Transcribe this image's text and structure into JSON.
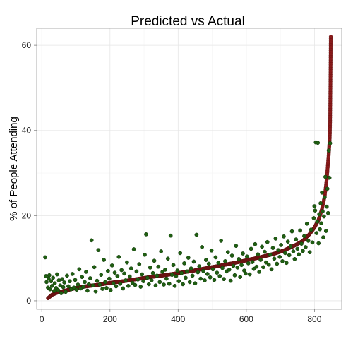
{
  "chart_data": {
    "type": "scatter",
    "title": "Predicted vs Actual",
    "xlabel": "",
    "ylabel": "% of People Attending",
    "xlim": [
      -15,
      880
    ],
    "ylim": [
      -2,
      64
    ],
    "x_ticks": [
      0,
      200,
      400,
      600,
      800
    ],
    "y_ticks": [
      0,
      20,
      40,
      60
    ],
    "grid": true,
    "legend": "none",
    "colors": {
      "actual": "#1f5e12",
      "predicted": "#8b1a1a"
    },
    "series": [
      {
        "role": "actual",
        "points": [
          [
            10,
            10.2
          ],
          [
            12,
            5.8
          ],
          [
            14,
            4.4
          ],
          [
            18,
            3.1
          ],
          [
            20,
            5.2
          ],
          [
            22,
            6.0
          ],
          [
            24,
            2.7
          ],
          [
            27,
            4.6
          ],
          [
            30,
            3.5
          ],
          [
            33,
            5.4
          ],
          [
            36,
            2.3
          ],
          [
            38,
            4.1
          ],
          [
            42,
            3.0
          ],
          [
            45,
            6.2
          ],
          [
            48,
            2.5
          ],
          [
            50,
            4.8
          ],
          [
            54,
            3.6
          ],
          [
            57,
            1.8
          ],
          [
            60,
            5.1
          ],
          [
            63,
            3.2
          ],
          [
            66,
            4.3
          ],
          [
            70,
            2.1
          ],
          [
            74,
            5.9
          ],
          [
            78,
            3.4
          ],
          [
            82,
            4.6
          ],
          [
            86,
            2.7
          ],
          [
            90,
            6.3
          ],
          [
            94,
            3.1
          ],
          [
            98,
            4.9
          ],
          [
            102,
            2.6
          ],
          [
            106,
            3.8
          ],
          [
            110,
            7.4
          ],
          [
            114,
            2.9
          ],
          [
            118,
            5.6
          ],
          [
            122,
            3.3
          ],
          [
            126,
            4.4
          ],
          [
            130,
            6.8
          ],
          [
            134,
            2.4
          ],
          [
            138,
            3.9
          ],
          [
            142,
            5.3
          ],
          [
            146,
            14.2
          ],
          [
            150,
            3.6
          ],
          [
            154,
            7.9
          ],
          [
            158,
            2.2
          ],
          [
            162,
            4.7
          ],
          [
            166,
            11.9
          ],
          [
            170,
            3.8
          ],
          [
            174,
            6.1
          ],
          [
            178,
            2.8
          ],
          [
            182,
            9.6
          ],
          [
            186,
            4.4
          ],
          [
            190,
            3.0
          ],
          [
            194,
            7.0
          ],
          [
            198,
            5.2
          ],
          [
            202,
            2.5
          ],
          [
            206,
            8.3
          ],
          [
            210,
            4.1
          ],
          [
            214,
            6.6
          ],
          [
            218,
            3.4
          ],
          [
            222,
            5.8
          ],
          [
            226,
            10.3
          ],
          [
            230,
            4.0
          ],
          [
            234,
            7.2
          ],
          [
            238,
            2.9
          ],
          [
            242,
            6.4
          ],
          [
            246,
            4.8
          ],
          [
            250,
            9.0
          ],
          [
            254,
            3.5
          ],
          [
            258,
            5.7
          ],
          [
            262,
            7.6
          ],
          [
            266,
            4.2
          ],
          [
            270,
            12.1
          ],
          [
            274,
            3.7
          ],
          [
            278,
            6.9
          ],
          [
            282,
            5.0
          ],
          [
            286,
            8.6
          ],
          [
            290,
            3.3
          ],
          [
            294,
            6.2
          ],
          [
            298,
            4.6
          ],
          [
            302,
            10.8
          ],
          [
            306,
            15.6
          ],
          [
            310,
            5.4
          ],
          [
            314,
            3.9
          ],
          [
            318,
            7.8
          ],
          [
            322,
            4.8
          ],
          [
            326,
            6.5
          ],
          [
            330,
            9.4
          ],
          [
            334,
            3.6
          ],
          [
            338,
            5.9
          ],
          [
            342,
            8.0
          ],
          [
            346,
            4.4
          ],
          [
            350,
            11.6
          ],
          [
            354,
            6.8
          ],
          [
            358,
            3.8
          ],
          [
            362,
            7.3
          ],
          [
            366,
            5.2
          ],
          [
            370,
            9.9
          ],
          [
            374,
            4.0
          ],
          [
            378,
            15.3
          ],
          [
            382,
            6.1
          ],
          [
            386,
            8.4
          ],
          [
            390,
            3.5
          ],
          [
            394,
            5.8
          ],
          [
            398,
            7.1
          ],
          [
            402,
            4.6
          ],
          [
            406,
            11.2
          ],
          [
            410,
            6.5
          ],
          [
            414,
            3.9
          ],
          [
            418,
            8.8
          ],
          [
            422,
            5.4
          ],
          [
            426,
            6.9
          ],
          [
            430,
            10.1
          ],
          [
            434,
            4.4
          ],
          [
            438,
            7.6
          ],
          [
            442,
            5.9
          ],
          [
            446,
            9.2
          ],
          [
            450,
            4.1
          ],
          [
            454,
            15.5
          ],
          [
            458,
            6.7
          ],
          [
            462,
            8.1
          ],
          [
            466,
            5.2
          ],
          [
            470,
            12.6
          ],
          [
            474,
            7.0
          ],
          [
            478,
            4.8
          ],
          [
            482,
            9.6
          ],
          [
            486,
            6.3
          ],
          [
            490,
            8.7
          ],
          [
            494,
            5.5
          ],
          [
            498,
            11.8
          ],
          [
            502,
            7.4
          ],
          [
            506,
            4.9
          ],
          [
            510,
            10.2
          ],
          [
            514,
            6.6
          ],
          [
            518,
            8.9
          ],
          [
            522,
            5.8
          ],
          [
            526,
            14.1
          ],
          [
            530,
            7.7
          ],
          [
            534,
            5.1
          ],
          [
            538,
            9.3
          ],
          [
            542,
            6.9
          ],
          [
            546,
            11.4
          ],
          [
            550,
            7.3
          ],
          [
            554,
            4.7
          ],
          [
            558,
            10.6
          ],
          [
            562,
            8.2
          ],
          [
            566,
            6.0
          ],
          [
            570,
            12.9
          ],
          [
            574,
            7.8
          ],
          [
            578,
            9.8
          ],
          [
            582,
            5.6
          ],
          [
            586,
            8.4
          ],
          [
            590,
            11.1
          ],
          [
            594,
            7.1
          ],
          [
            598,
            6.4
          ],
          [
            602,
            10.4
          ],
          [
            606,
            8.8
          ],
          [
            610,
            6.2
          ],
          [
            614,
            12.2
          ],
          [
            618,
            9.1
          ],
          [
            622,
            7.5
          ],
          [
            626,
            13.3
          ],
          [
            630,
            8.0
          ],
          [
            634,
            10.9
          ],
          [
            638,
            6.8
          ],
          [
            642,
            9.6
          ],
          [
            646,
            12.7
          ],
          [
            650,
            7.9
          ],
          [
            654,
            11.5
          ],
          [
            658,
            9.0
          ],
          [
            662,
            13.8
          ],
          [
            666,
            8.5
          ],
          [
            670,
            10.8
          ],
          [
            674,
            7.4
          ],
          [
            678,
            12.4
          ],
          [
            682,
            9.9
          ],
          [
            686,
            14.6
          ],
          [
            690,
            8.7
          ],
          [
            694,
            11.9
          ],
          [
            698,
            10.3
          ],
          [
            702,
            13.1
          ],
          [
            706,
            9.3
          ],
          [
            710,
            15.1
          ],
          [
            714,
            11.2
          ],
          [
            718,
            8.9
          ],
          [
            722,
            13.9
          ],
          [
            726,
            10.7
          ],
          [
            730,
            12.8
          ],
          [
            734,
            16.3
          ],
          [
            738,
            11.6
          ],
          [
            742,
            9.8
          ],
          [
            746,
            14.4
          ],
          [
            750,
            12.2
          ],
          [
            754,
            10.9
          ],
          [
            758,
            16.5
          ],
          [
            762,
            13.4
          ],
          [
            766,
            11.7
          ],
          [
            770,
            15.2
          ],
          [
            774,
            12.6
          ],
          [
            778,
            18.1
          ],
          [
            782,
            14.1
          ],
          [
            786,
            11.4
          ],
          [
            790,
            16.7
          ],
          [
            794,
            13.7
          ],
          [
            798,
            19.4
          ],
          [
            800,
            22.2
          ],
          [
            802,
            21.2
          ],
          [
            804,
            37.2
          ],
          [
            806,
            15.9
          ],
          [
            808,
            18.6
          ],
          [
            810,
            37.1
          ],
          [
            812,
            13.5
          ],
          [
            814,
            20.3
          ],
          [
            816,
            16.8
          ],
          [
            818,
            22.9
          ],
          [
            820,
            18.2
          ],
          [
            822,
            25.4
          ],
          [
            824,
            21.0
          ],
          [
            826,
            14.9
          ],
          [
            828,
            19.8
          ],
          [
            830,
            24.3
          ],
          [
            832,
            29.1
          ],
          [
            834,
            16.4
          ],
          [
            836,
            22.1
          ],
          [
            838,
            26.3
          ],
          [
            840,
            20.6
          ],
          [
            842,
            35.3
          ],
          [
            844,
            28.9
          ],
          [
            846,
            37.0
          ]
        ]
      },
      {
        "role": "predicted",
        "points": [
          [
            18,
            0.6
          ],
          [
            30,
            1.4
          ],
          [
            45,
            1.9
          ],
          [
            60,
            2.2
          ],
          [
            80,
            2.6
          ],
          [
            100,
            3.0
          ],
          [
            130,
            3.4
          ],
          [
            160,
            3.7
          ],
          [
            200,
            4.2
          ],
          [
            240,
            4.6
          ],
          [
            280,
            5.1
          ],
          [
            320,
            5.6
          ],
          [
            360,
            6.0
          ],
          [
            400,
            6.5
          ],
          [
            440,
            7.0
          ],
          [
            480,
            7.6
          ],
          [
            520,
            8.2
          ],
          [
            560,
            8.8
          ],
          [
            600,
            9.5
          ],
          [
            640,
            10.2
          ],
          [
            680,
            11.0
          ],
          [
            710,
            11.8
          ],
          [
            740,
            12.9
          ],
          [
            765,
            14.0
          ],
          [
            785,
            15.6
          ],
          [
            800,
            17.2
          ],
          [
            812,
            19.0
          ],
          [
            822,
            21.5
          ],
          [
            830,
            24.5
          ],
          [
            836,
            28.5
          ],
          [
            840,
            32.5
          ],
          [
            842,
            34.5
          ],
          [
            844,
            37.0
          ],
          [
            845,
            38.8
          ],
          [
            846,
            42.3
          ],
          [
            847,
            51.5
          ],
          [
            848,
            62.0
          ]
        ]
      }
    ]
  }
}
